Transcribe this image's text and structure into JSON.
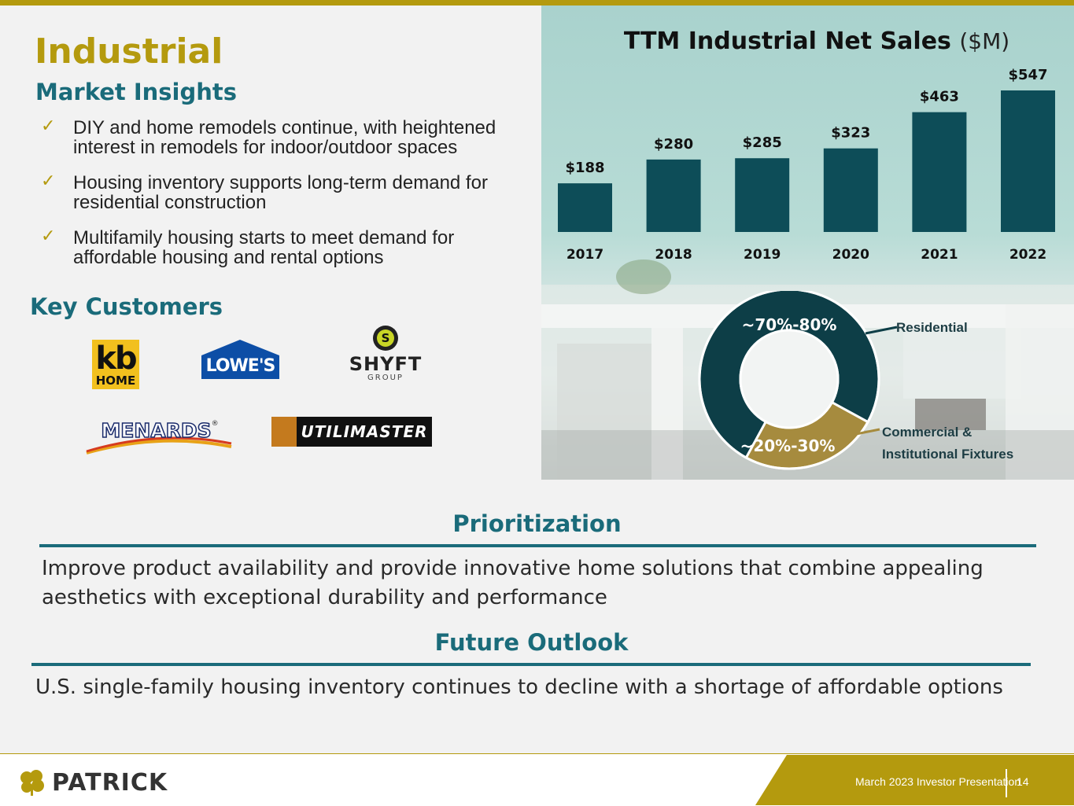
{
  "page": {
    "title": "Industrial"
  },
  "market_insights": {
    "heading": "Market Insights",
    "bullets": [
      "DIY and home remodels continue, with heightened interest in remodels for indoor/outdoor spaces",
      "Housing inventory supports long-term demand for residential construction",
      "Multifamily housing starts to meet demand for affordable housing and rental options"
    ]
  },
  "key_customers": {
    "heading": "Key Customers",
    "logos": {
      "kb_top": "kb",
      "kb_bottom": "HOME",
      "lowes": "LOWE'S",
      "shyft_mark": "S",
      "shyft_name": "SHYFT",
      "shyft_sub": "GROUP",
      "menards": "MENARDS",
      "menards_reg": "®",
      "utilimaster": "UTILIMASTER"
    }
  },
  "chart_title": {
    "main": "TTM Industrial Net Sales",
    "unit": "($M)"
  },
  "chart_data": [
    {
      "type": "bar",
      "title": "TTM Industrial Net Sales ($M)",
      "categories": [
        "2017",
        "2018",
        "2019",
        "2020",
        "2021",
        "2022"
      ],
      "values": [
        188,
        280,
        285,
        323,
        463,
        547
      ],
      "data_labels": [
        "$188",
        "$280",
        "$285",
        "$323",
        "$463",
        "$547"
      ],
      "color": "#0d4d58"
    },
    {
      "type": "pie",
      "slices": [
        {
          "label": "Residential",
          "value_label": "~70%-80%",
          "value": 75,
          "color": "#0d3e47"
        },
        {
          "label": "Commercial & Institutional Fixtures",
          "value_label": "~20%-30%",
          "value": 25,
          "color": "#a68b3e"
        }
      ]
    }
  ],
  "donut": {
    "residential_label": "Residential",
    "commercial_label_line1": "Commercial &",
    "commercial_label_line2": "Institutional Fixtures"
  },
  "prioritization": {
    "heading": "Prioritization",
    "text": "Improve product availability and provide innovative home solutions that combine appealing aesthetics with exceptional durability and performance"
  },
  "future_outlook": {
    "heading": "Future Outlook",
    "text": "U.S. single-family housing inventory continues to decline with a shortage of affordable options"
  },
  "footer": {
    "brand": "PATRICK",
    "presentation": "March 2023 Investor Presentation",
    "page_number": "14"
  },
  "colors": {
    "gold": "#b49a0e",
    "teal": "#1a6b7a",
    "dark_teal": "#0d4d58"
  }
}
